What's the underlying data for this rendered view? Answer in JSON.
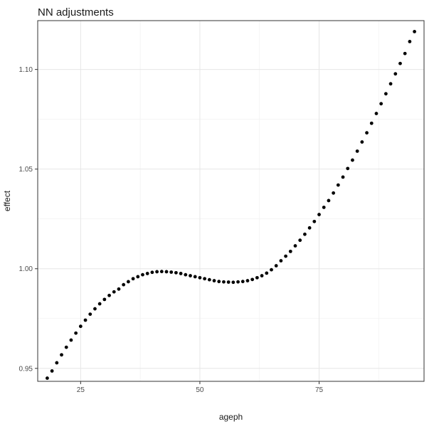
{
  "chart_data": {
    "type": "scatter",
    "title": "NN adjustments",
    "xlabel": "ageph",
    "ylabel": "effect",
    "xlim": [
      16,
      97
    ],
    "ylim": [
      0.9435,
      1.1245
    ],
    "x_ticks": [
      25,
      50,
      75
    ],
    "x_tick_labels": [
      "25",
      "50",
      "75"
    ],
    "y_ticks": [
      0.95,
      1.0,
      1.05,
      1.1
    ],
    "y_tick_labels": [
      "0.95",
      "1.00",
      "1.05",
      "1.10"
    ],
    "x_minor_ticks": [
      37.5,
      62.5,
      87.5
    ],
    "y_minor_ticks": [
      0.975,
      1.025,
      1.075
    ],
    "grid": true,
    "legend": "none",
    "marker_color": "#000000",
    "series": [
      {
        "x": [
          18,
          19,
          20,
          21,
          22,
          23,
          24,
          25,
          26,
          27,
          28,
          29,
          30,
          31,
          32,
          33,
          34,
          35,
          36,
          37,
          38,
          39,
          40,
          41,
          42,
          43,
          44,
          45,
          46,
          47,
          48,
          49,
          50,
          51,
          52,
          53,
          54,
          55,
          56,
          57,
          58,
          59,
          60,
          61,
          62,
          63,
          64,
          65,
          66,
          67,
          68,
          69,
          70,
          71,
          72,
          73,
          74,
          75,
          76,
          77,
          78,
          79,
          80,
          81,
          82,
          83,
          84,
          85,
          86,
          87,
          88,
          89,
          90,
          91,
          92,
          93,
          94,
          95
        ],
        "y": [
          0.9451,
          0.9487,
          0.9528,
          0.9568,
          0.9606,
          0.9642,
          0.9677,
          0.9711,
          0.9742,
          0.9772,
          0.9799,
          0.9824,
          0.9846,
          0.9866,
          0.9884,
          0.9898,
          0.992,
          0.9935,
          0.995,
          0.996,
          0.997,
          0.9976,
          0.9982,
          0.9985,
          0.9986,
          0.9985,
          0.9983,
          0.998,
          0.9976,
          0.997,
          0.9965,
          0.996,
          0.9955,
          0.995,
          0.9945,
          0.994,
          0.9936,
          0.9934,
          0.9933,
          0.9932,
          0.9934,
          0.9936,
          0.994,
          0.9946,
          0.9955,
          0.9965,
          0.9978,
          0.9995,
          1.0015,
          1.004,
          1.0063,
          1.0087,
          1.0115,
          1.0143,
          1.0173,
          1.0205,
          1.0237,
          1.0272,
          1.0308,
          1.0342,
          1.038,
          1.042,
          1.046,
          1.0503,
          1.0545,
          1.059,
          1.0636,
          1.0682,
          1.073,
          1.0779,
          1.0828,
          1.0878,
          1.0928,
          1.0978,
          1.103,
          1.108,
          1.114,
          1.119
        ]
      }
    ]
  }
}
